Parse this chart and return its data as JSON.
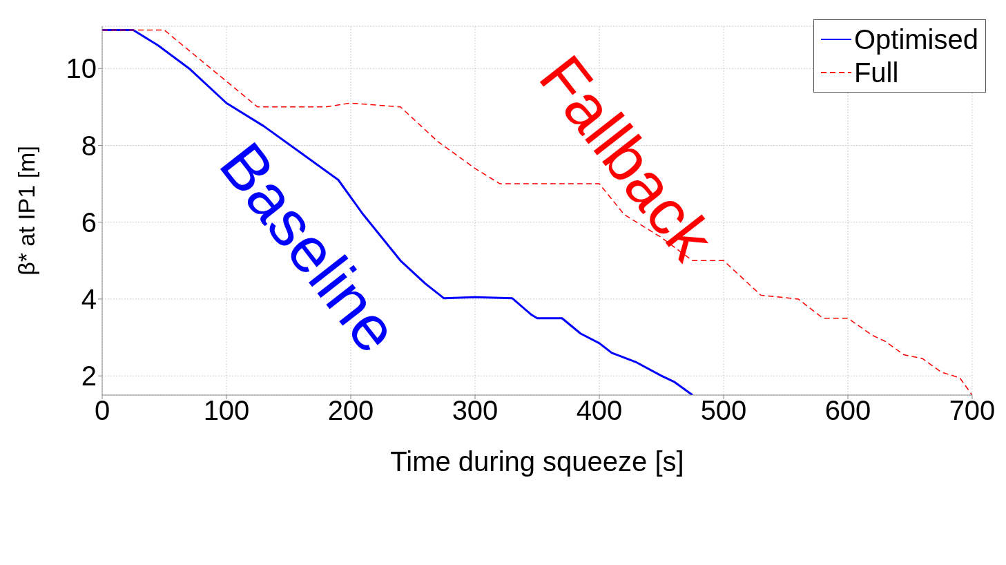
{
  "chart_data": {
    "type": "line",
    "xlabel": "Time during squeeze [s]",
    "ylabel": "β* at IP1 [m]",
    "xlim": [
      0,
      700
    ],
    "xticks": [
      0,
      100,
      200,
      300,
      400,
      500,
      600,
      700
    ],
    "ylim": [
      1.5,
      11.1
    ],
    "yticks": [
      2,
      4,
      6,
      8,
      10
    ],
    "grid": true,
    "legend": "top right",
    "marker": "none",
    "series": [
      {
        "name": "Optimised",
        "color": "#0000ff",
        "line_style": "solid",
        "x": [
          0,
          25,
          45,
          70,
          100,
          130,
          160,
          190,
          210,
          240,
          260,
          275,
          300,
          330,
          345,
          350,
          370,
          385,
          400,
          410,
          430,
          450,
          460,
          475
        ],
        "values": [
          11,
          11,
          10.6,
          10,
          9.1,
          8.5,
          7.8,
          7.1,
          6.2,
          5.0,
          4.4,
          4.02,
          4.05,
          4.02,
          3.6,
          3.5,
          3.5,
          3.1,
          2.85,
          2.6,
          2.35,
          2.0,
          1.85,
          1.5
        ]
      },
      {
        "name": "Full",
        "color": "#ff0000",
        "line_style": "dashed",
        "x": [
          0,
          50,
          125,
          180,
          200,
          240,
          270,
          300,
          320,
          400,
          420,
          450,
          475,
          500,
          530,
          560,
          580,
          600,
          620,
          630,
          645,
          660,
          675,
          690,
          700
        ],
        "values": [
          11,
          11,
          9,
          9,
          9.1,
          9,
          8.1,
          7.4,
          7,
          7,
          6.2,
          5.6,
          5,
          5,
          4.1,
          4,
          3.5,
          3.5,
          3.05,
          2.9,
          2.55,
          2.45,
          2.1,
          1.95,
          1.5
        ]
      }
    ],
    "annotations": [
      "Baseline",
      "Fallback"
    ]
  }
}
